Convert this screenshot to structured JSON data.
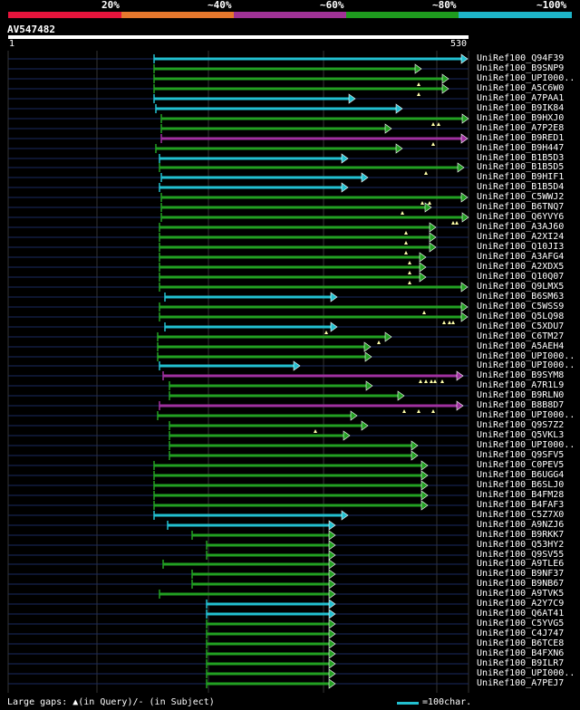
{
  "legend": {
    "labels": [
      "20%",
      "~40%",
      "~60%",
      "~80%",
      "~100%"
    ],
    "colors": [
      "#e6143c",
      "#e6782d",
      "#a03296",
      "#1e9b1e",
      "#1eb4c8"
    ]
  },
  "query": {
    "id": "AV547482",
    "start": "1",
    "end": "530"
  },
  "colors": {
    "cyan": "#22c0d0",
    "green": "#22a022",
    "magenta": "#a030a0"
  },
  "rows": [
    {
      "label": "UniRef100_Q94F39",
      "color": "cyan",
      "start": 170,
      "end": 516,
      "gaps": []
    },
    {
      "label": "UniRef100_B9SNP9",
      "color": "green",
      "start": 170,
      "end": 465,
      "gaps": []
    },
    {
      "label": "UniRef100_UPI000..",
      "color": "green",
      "start": 170,
      "end": 495,
      "gaps": [
        462
      ]
    },
    {
      "label": "UniRef100_A5C6W0",
      "color": "green",
      "start": 170,
      "end": 495,
      "gaps": [
        462
      ]
    },
    {
      "label": "UniRef100_A7PAA1",
      "color": "cyan",
      "start": 170,
      "end": 392,
      "gaps": []
    },
    {
      "label": "UniRef100_B9IK84",
      "color": "cyan",
      "start": 172,
      "end": 444,
      "gaps": []
    },
    {
      "label": "UniRef100_B9HXJ0",
      "color": "green",
      "start": 178,
      "end": 517,
      "gaps": [
        478,
        484
      ]
    },
    {
      "label": "UniRef100_A7P2E8",
      "color": "green",
      "start": 178,
      "end": 432,
      "gaps": []
    },
    {
      "label": "UniRef100_B9RED1",
      "color": "magenta",
      "start": 178,
      "end": 516,
      "gaps": [
        478
      ]
    },
    {
      "label": "UniRef100_B9H447",
      "color": "green",
      "start": 172,
      "end": 444,
      "gaps": []
    },
    {
      "label": "UniRef100_B1B5D3",
      "color": "cyan",
      "start": 176,
      "end": 384,
      "gaps": []
    },
    {
      "label": "UniRef100_B1B5D5",
      "color": "green",
      "start": 176,
      "end": 512,
      "gaps": [
        470
      ]
    },
    {
      "label": "UniRef100_B9HIF1",
      "color": "cyan",
      "start": 178,
      "end": 406,
      "gaps": []
    },
    {
      "label": "UniRef100_B1B5D4",
      "color": "cyan",
      "start": 176,
      "end": 384,
      "gaps": []
    },
    {
      "label": "UniRef100_C5WWJ2",
      "color": "green",
      "start": 178,
      "end": 516,
      "gaps": [
        466,
        474
      ]
    },
    {
      "label": "UniRef100_B6TNQ7",
      "color": "green",
      "start": 178,
      "end": 476,
      "gaps": [
        444
      ]
    },
    {
      "label": "UniRef100_Q6YVY6",
      "color": "green",
      "start": 178,
      "end": 517,
      "gaps": [
        500,
        504
      ]
    },
    {
      "label": "UniRef100_A3AJ60",
      "color": "green",
      "start": 176,
      "end": 481,
      "gaps": [
        448
      ]
    },
    {
      "label": "UniRef100_A2XI24",
      "color": "green",
      "start": 176,
      "end": 481,
      "gaps": [
        448
      ]
    },
    {
      "label": "UniRef100_Q10JI3",
      "color": "green",
      "start": 176,
      "end": 481,
      "gaps": [
        448
      ]
    },
    {
      "label": "UniRef100_A3AFG4",
      "color": "green",
      "start": 176,
      "end": 470,
      "gaps": [
        452
      ]
    },
    {
      "label": "UniRef100_A2XDX5",
      "color": "green",
      "start": 176,
      "end": 470,
      "gaps": [
        452
      ]
    },
    {
      "label": "UniRef100_Q10Q07",
      "color": "green",
      "start": 176,
      "end": 470,
      "gaps": [
        452
      ]
    },
    {
      "label": "UniRef100_Q9LMX5",
      "color": "green",
      "start": 176,
      "end": 516,
      "gaps": []
    },
    {
      "label": "UniRef100_B6SM63",
      "color": "cyan",
      "start": 182,
      "end": 372,
      "gaps": []
    },
    {
      "label": "UniRef100_C5WSS9",
      "color": "green",
      "start": 176,
      "end": 516,
      "gaps": [
        468
      ]
    },
    {
      "label": "UniRef100_Q5LQ98",
      "color": "green",
      "start": 176,
      "end": 516,
      "gaps": [
        490,
        496,
        500
      ]
    },
    {
      "label": "UniRef100_C5XDU7",
      "color": "cyan",
      "start": 182,
      "end": 372,
      "gaps": [
        360
      ]
    },
    {
      "label": "UniRef100_C6TM27",
      "color": "green",
      "start": 174,
      "end": 432,
      "gaps": [
        418
      ]
    },
    {
      "label": "UniRef100_A5AEH4",
      "color": "green",
      "start": 174,
      "end": 409,
      "gaps": []
    },
    {
      "label": "UniRef100_UPI000..",
      "color": "green",
      "start": 174,
      "end": 410,
      "gaps": []
    },
    {
      "label": "UniRef100_UPI000..",
      "color": "cyan",
      "start": 176,
      "end": 331,
      "gaps": []
    },
    {
      "label": "UniRef100_B9SYM8",
      "color": "magenta",
      "start": 180,
      "end": 511,
      "gaps": [
        464,
        470,
        476,
        480,
        488
      ]
    },
    {
      "label": "UniRef100_A7R1L9",
      "color": "green",
      "start": 187,
      "end": 411,
      "gaps": []
    },
    {
      "label": "UniRef100_B9RLN0",
      "color": "green",
      "start": 187,
      "end": 446,
      "gaps": []
    },
    {
      "label": "UniRef100_B8B8D7",
      "color": "magenta",
      "start": 176,
      "end": 511,
      "gaps": [
        446,
        462,
        478
      ]
    },
    {
      "label": "UniRef100_UPI000..",
      "color": "green",
      "start": 174,
      "end": 394,
      "gaps": []
    },
    {
      "label": "UniRef100_Q9S7Z2",
      "color": "green",
      "start": 187,
      "end": 406,
      "gaps": [
        348
      ]
    },
    {
      "label": "UniRef100_Q5VKL3",
      "color": "green",
      "start": 187,
      "end": 386,
      "gaps": []
    },
    {
      "label": "UniRef100_UPI000..",
      "color": "green",
      "start": 187,
      "end": 461,
      "gaps": []
    },
    {
      "label": "UniRef100_Q9SFV5",
      "color": "green",
      "start": 187,
      "end": 461,
      "gaps": []
    },
    {
      "label": "UniRef100_C0PEV5",
      "color": "green",
      "start": 170,
      "end": 472,
      "gaps": []
    },
    {
      "label": "UniRef100_B6UGG4",
      "color": "green",
      "start": 170,
      "end": 472,
      "gaps": []
    },
    {
      "label": "UniRef100_B6SLJ0",
      "color": "green",
      "start": 170,
      "end": 472,
      "gaps": []
    },
    {
      "label": "UniRef100_B4FM28",
      "color": "green",
      "start": 170,
      "end": 472,
      "gaps": []
    },
    {
      "label": "UniRef100_B4FAF3",
      "color": "green",
      "start": 170,
      "end": 472,
      "gaps": []
    },
    {
      "label": "UniRef100_C5Z7X0",
      "color": "cyan",
      "start": 170,
      "end": 384,
      "gaps": []
    },
    {
      "label": "UniRef100_A9NZJ6",
      "color": "cyan",
      "start": 185,
      "end": 370,
      "gaps": []
    },
    {
      "label": "UniRef100_B9RKK7",
      "color": "green",
      "start": 212,
      "end": 370,
      "gaps": []
    },
    {
      "label": "UniRef100_Q53HY2",
      "color": "green",
      "start": 228,
      "end": 370,
      "gaps": []
    },
    {
      "label": "UniRef100_Q9SV55",
      "color": "green",
      "start": 228,
      "end": 370,
      "gaps": []
    },
    {
      "label": "UniRef100_A9TLE6",
      "color": "green",
      "start": 180,
      "end": 370,
      "gaps": []
    },
    {
      "label": "UniRef100_B9NF37",
      "color": "green",
      "start": 212,
      "end": 370,
      "gaps": []
    },
    {
      "label": "UniRef100_B9NB67",
      "color": "green",
      "start": 212,
      "end": 370,
      "gaps": []
    },
    {
      "label": "UniRef100_A9TVK5",
      "color": "green",
      "start": 176,
      "end": 370,
      "gaps": []
    },
    {
      "label": "UniRef100_A2Y7C9",
      "color": "cyan",
      "start": 228,
      "end": 370,
      "gaps": []
    },
    {
      "label": "UniRef100_Q6AT41",
      "color": "cyan",
      "start": 228,
      "end": 370,
      "gaps": []
    },
    {
      "label": "UniRef100_C5YVG5",
      "color": "green",
      "start": 228,
      "end": 370,
      "gaps": []
    },
    {
      "label": "UniRef100_C4J747",
      "color": "green",
      "start": 228,
      "end": 370,
      "gaps": []
    },
    {
      "label": "UniRef100_B6TCE8",
      "color": "green",
      "start": 228,
      "end": 370,
      "gaps": []
    },
    {
      "label": "UniRef100_B4FXN6",
      "color": "green",
      "start": 228,
      "end": 370,
      "gaps": []
    },
    {
      "label": "UniRef100_B9ILR7",
      "color": "green",
      "start": 228,
      "end": 370,
      "gaps": []
    },
    {
      "label": "UniRef100_UPI000..",
      "color": "green",
      "start": 228,
      "end": 370,
      "gaps": []
    },
    {
      "label": "UniRef100_A7PEJ7",
      "color": "green",
      "start": 228,
      "end": 370,
      "gaps": []
    }
  ],
  "footer": {
    "gaps_text": "Large gaps: ▲(in Query)/- (in Subject)",
    "scale_text": "=100char."
  }
}
